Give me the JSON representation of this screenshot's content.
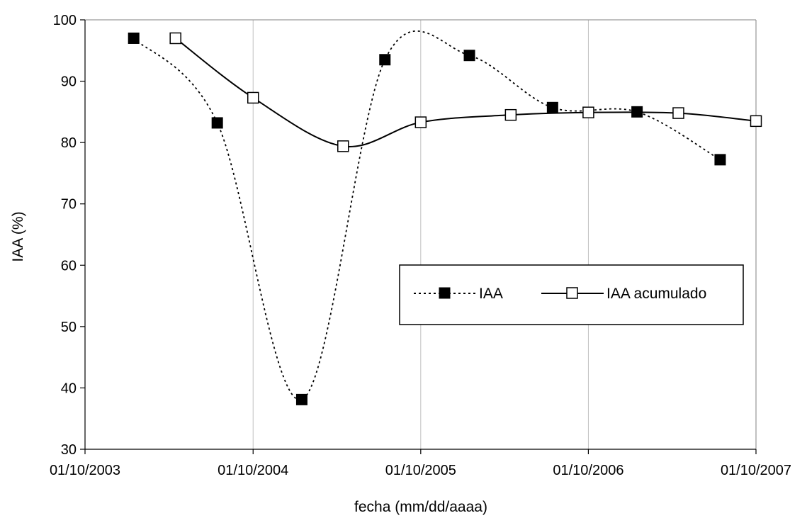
{
  "chart_data": {
    "type": "line",
    "xlabel": "fecha (mm/dd/aaaa)",
    "ylabel": "IAA (%)",
    "x_ticks": [
      "01/10/2003",
      "01/10/2004",
      "01/10/2005",
      "01/10/2006",
      "01/10/2007"
    ],
    "y_ticks": [
      30,
      40,
      50,
      60,
      70,
      80,
      90,
      100
    ],
    "ylim": [
      30,
      100
    ],
    "xlim": [
      "2003-10-01",
      "2007-10-01"
    ],
    "grid": "vertical lines at x ticks",
    "legend_position": "center-right",
    "smoothed": true,
    "series": [
      {
        "name": "IAA",
        "line_style": "dotted",
        "marker": "filled-square",
        "color": "#000000",
        "x": [
          "2004-01-15",
          "2004-07-15",
          "2005-01-15",
          "2005-07-15",
          "2006-01-15",
          "2006-07-15",
          "2007-01-15",
          "2007-07-15"
        ],
        "values": [
          97.0,
          83.2,
          38.1,
          93.5,
          94.2,
          85.7,
          85.0,
          77.2
        ]
      },
      {
        "name": "IAA acumulado",
        "line_style": "solid",
        "marker": "open-square",
        "color": "#000000",
        "x": [
          "2004-04-15",
          "2004-10-01",
          "2005-04-15",
          "2005-10-01",
          "2006-04-15",
          "2006-10-01",
          "2007-04-15",
          "2007-10-01"
        ],
        "values": [
          97.0,
          87.3,
          79.4,
          83.3,
          84.5,
          84.9,
          84.8,
          83.5
        ]
      }
    ]
  }
}
